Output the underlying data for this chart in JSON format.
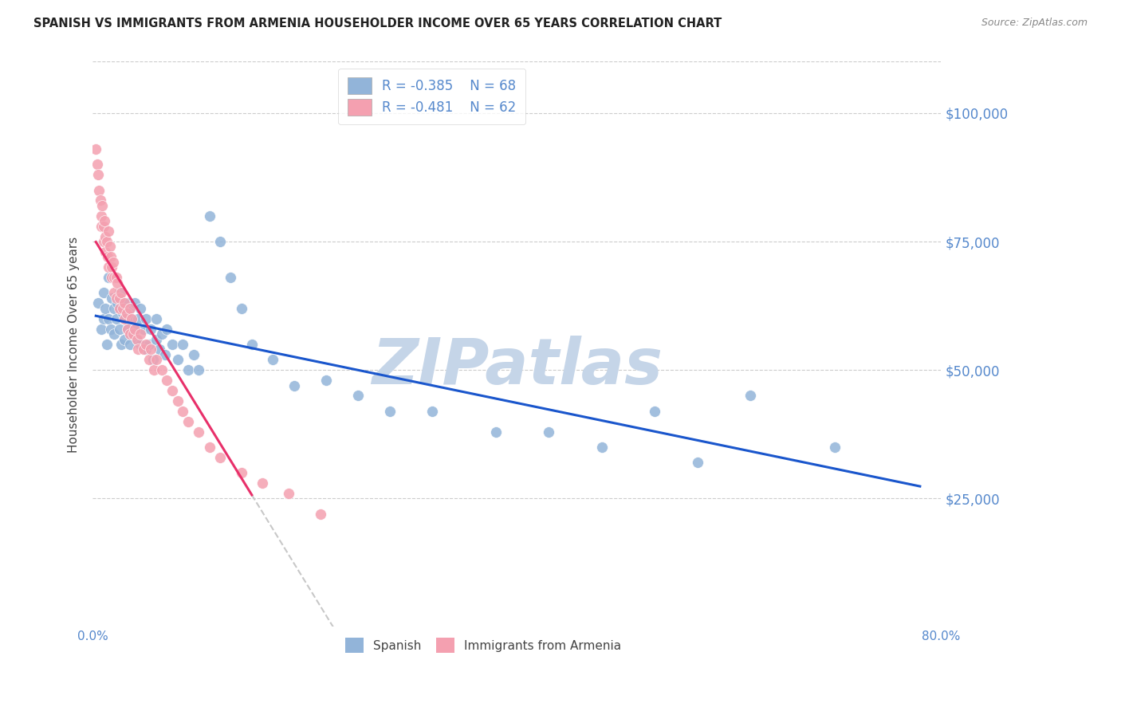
{
  "title": "SPANISH VS IMMIGRANTS FROM ARMENIA HOUSEHOLDER INCOME OVER 65 YEARS CORRELATION CHART",
  "source": "Source: ZipAtlas.com",
  "ylabel": "Householder Income Over 65 years",
  "xlim": [
    0.0,
    0.8
  ],
  "ylim": [
    0,
    110000
  ],
  "yticks": [
    0,
    25000,
    50000,
    75000,
    100000
  ],
  "ytick_labels": [
    "",
    "$25,000",
    "$50,000",
    "$75,000",
    "$100,000"
  ],
  "xticks": [
    0.0,
    0.1,
    0.2,
    0.3,
    0.4,
    0.5,
    0.6,
    0.7,
    0.8
  ],
  "xtick_labels": [
    "0.0%",
    "",
    "",
    "",
    "",
    "",
    "",
    "",
    "80.0%"
  ],
  "legend_r_spanish": "R = -0.385",
  "legend_n_spanish": "N = 68",
  "legend_r_armenia": "R = -0.481",
  "legend_n_armenia": "N = 62",
  "blue_color": "#92B4D9",
  "pink_color": "#F4A0B0",
  "trend_blue": "#1A56CC",
  "trend_pink": "#E8306A",
  "axis_color": "#5588CC",
  "watermark": "ZIPatlas",
  "watermark_color": "#C5D5E8",
  "background": "#FFFFFF",
  "spanish_x": [
    0.005,
    0.008,
    0.01,
    0.01,
    0.012,
    0.013,
    0.015,
    0.015,
    0.017,
    0.018,
    0.02,
    0.02,
    0.022,
    0.023,
    0.025,
    0.025,
    0.027,
    0.028,
    0.03,
    0.03,
    0.032,
    0.033,
    0.035,
    0.035,
    0.037,
    0.038,
    0.04,
    0.04,
    0.042,
    0.043,
    0.045,
    0.045,
    0.048,
    0.05,
    0.05,
    0.053,
    0.055,
    0.057,
    0.06,
    0.06,
    0.063,
    0.065,
    0.068,
    0.07,
    0.075,
    0.08,
    0.085,
    0.09,
    0.095,
    0.1,
    0.11,
    0.12,
    0.13,
    0.14,
    0.15,
    0.17,
    0.19,
    0.22,
    0.25,
    0.28,
    0.32,
    0.38,
    0.43,
    0.48,
    0.53,
    0.57,
    0.62,
    0.7
  ],
  "spanish_y": [
    63000,
    58000,
    65000,
    60000,
    62000,
    55000,
    68000,
    60000,
    58000,
    64000,
    62000,
    57000,
    60000,
    63000,
    58000,
    65000,
    55000,
    61000,
    60000,
    56000,
    63000,
    58000,
    55000,
    62000,
    60000,
    57000,
    58000,
    63000,
    56000,
    60000,
    55000,
    62000,
    58000,
    54000,
    60000,
    55000,
    58000,
    52000,
    56000,
    60000,
    54000,
    57000,
    53000,
    58000,
    55000,
    52000,
    55000,
    50000,
    53000,
    50000,
    80000,
    75000,
    68000,
    62000,
    55000,
    52000,
    47000,
    48000,
    45000,
    42000,
    42000,
    38000,
    38000,
    35000,
    42000,
    32000,
    45000,
    35000
  ],
  "armenia_x": [
    0.003,
    0.004,
    0.005,
    0.006,
    0.007,
    0.008,
    0.008,
    0.009,
    0.01,
    0.01,
    0.011,
    0.012,
    0.012,
    0.013,
    0.014,
    0.015,
    0.015,
    0.016,
    0.017,
    0.018,
    0.018,
    0.019,
    0.02,
    0.02,
    0.022,
    0.022,
    0.023,
    0.025,
    0.025,
    0.027,
    0.028,
    0.03,
    0.03,
    0.032,
    0.033,
    0.035,
    0.035,
    0.037,
    0.038,
    0.04,
    0.042,
    0.043,
    0.045,
    0.048,
    0.05,
    0.053,
    0.055,
    0.058,
    0.06,
    0.065,
    0.07,
    0.075,
    0.08,
    0.085,
    0.09,
    0.1,
    0.11,
    0.12,
    0.14,
    0.16,
    0.185,
    0.215
  ],
  "armenia_y": [
    93000,
    90000,
    88000,
    85000,
    83000,
    80000,
    78000,
    82000,
    78000,
    75000,
    79000,
    76000,
    73000,
    75000,
    72000,
    77000,
    70000,
    74000,
    72000,
    70000,
    68000,
    71000,
    68000,
    65000,
    68000,
    64000,
    67000,
    64000,
    62000,
    65000,
    62000,
    60000,
    63000,
    61000,
    58000,
    62000,
    57000,
    60000,
    57000,
    58000,
    56000,
    54000,
    57000,
    54000,
    55000,
    52000,
    54000,
    50000,
    52000,
    50000,
    48000,
    46000,
    44000,
    42000,
    40000,
    38000,
    35000,
    33000,
    30000,
    28000,
    26000,
    22000
  ]
}
